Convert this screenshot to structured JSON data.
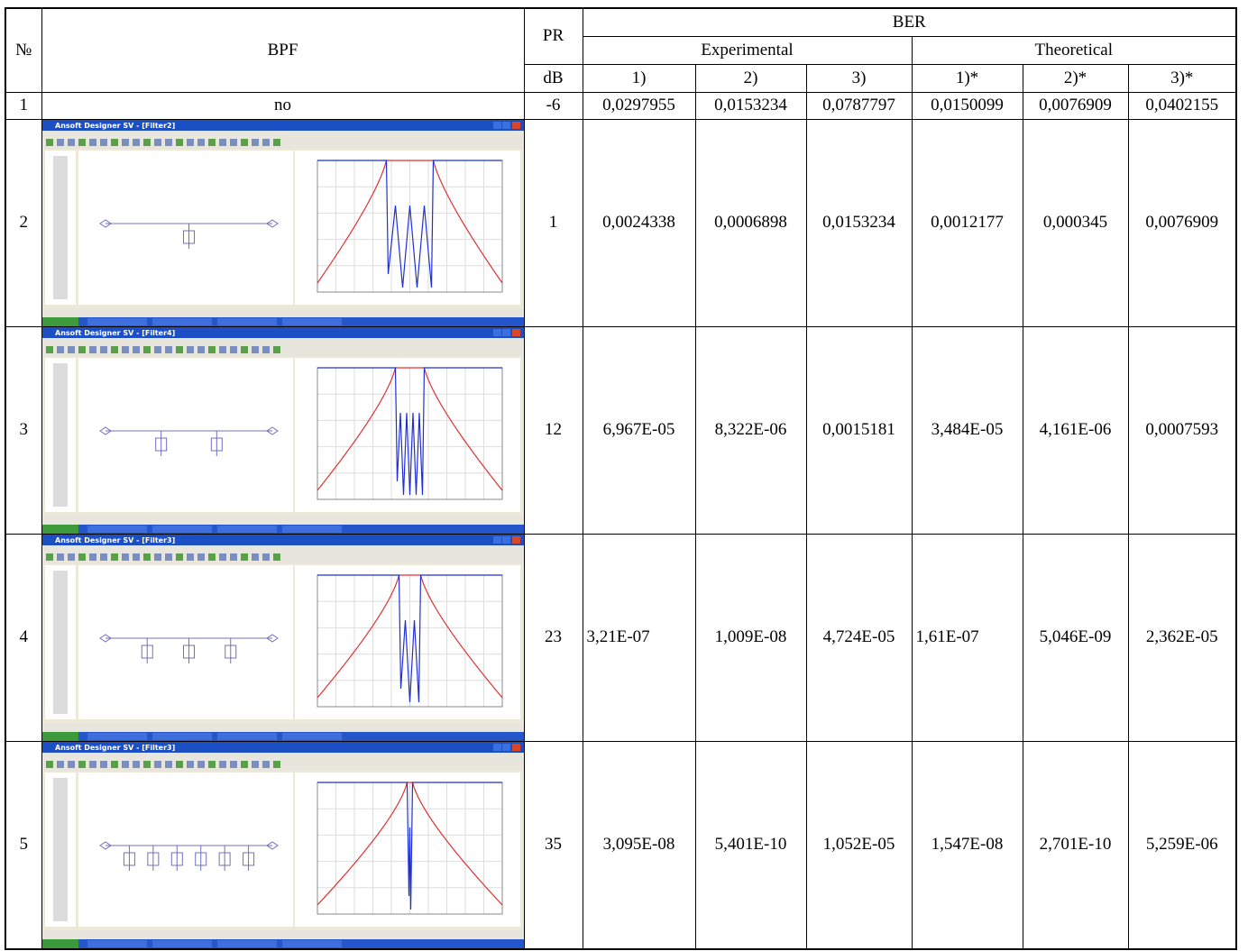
{
  "header": {
    "no": "№",
    "bpf": "BPF",
    "pr": "PR",
    "ber": "BER",
    "experimental": "Experimental",
    "theoretical": "Theoretical",
    "unit": "dB",
    "columns": [
      "1)",
      "2)",
      "3)",
      "1)*",
      "2)*",
      "3)*"
    ]
  },
  "table": {
    "rows": [
      {
        "no": "1",
        "bpf": "no",
        "pr": "-6",
        "values": [
          "0,0297955",
          "0,0153234",
          "0,0787797",
          "0,0150099",
          "0,0076909",
          "0,0402155"
        ]
      },
      {
        "no": "2",
        "screenshot_title": "Ansoft Designer SV - [Filter2]",
        "pr": "1",
        "values": [
          "0,0024338",
          "0,0006898",
          "0,0153234",
          "0,0012177",
          "0,000345",
          "0,0076909"
        ]
      },
      {
        "no": "3",
        "screenshot_title": "Ansoft Designer SV - [Filter4]",
        "pr": "12",
        "values": [
          "6,967E-05",
          "8,322E-06",
          "0,0015181",
          "3,484E-05",
          "4,161E-06",
          "0,0007593"
        ]
      },
      {
        "no": "4",
        "screenshot_title": "Ansoft Designer SV - [Filter3]",
        "pr": "23",
        "values": [
          "3,21E-07",
          "1,009E-08",
          "4,724E-05",
          "1,61E-07",
          "5,046E-09",
          "2,362E-05"
        ]
      },
      {
        "no": "5",
        "screenshot_title": "Ansoft Designer SV - [Filter3]",
        "pr": "35",
        "values": [
          "3,095E-08",
          "5,401E-10",
          "1,052E-05",
          "1,547E-08",
          "2,701E-10",
          "5,259E-06"
        ]
      }
    ]
  }
}
